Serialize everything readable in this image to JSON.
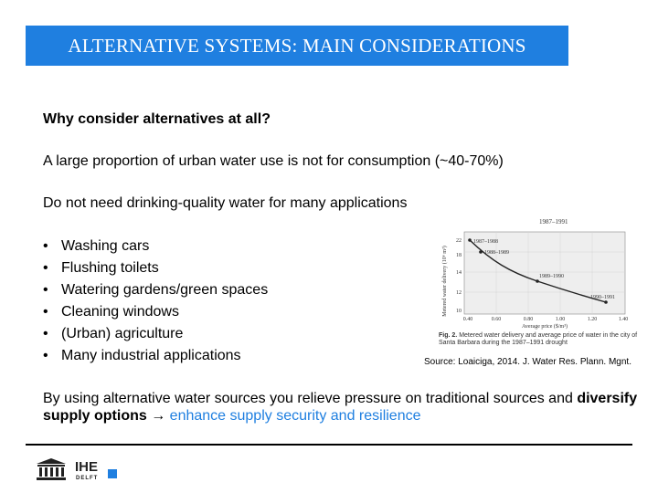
{
  "title": "ALTERNATIVE SYSTEMS: MAIN CONSIDERATIONS",
  "question": "Why consider alternatives at all?",
  "statement1": "A large proportion of urban water use is not for consumption (~40-70%)",
  "statement2": "Do not need drinking-quality water for many applications",
  "bullets": [
    "Washing cars",
    "Flushing toilets",
    "Watering gardens/green spaces",
    "Cleaning windows",
    "(Urban) agriculture",
    "Many industrial applications"
  ],
  "figure": {
    "top_label": "1987–1991",
    "ylabel": "Metered water delivery (10⁶ m³)",
    "xlabel": "Average price ($/m³)",
    "x_ticks": [
      "0.40",
      "0.60",
      "0.80",
      "1.00",
      "1.20",
      "1.40"
    ],
    "y_ticks": [
      "10",
      "12",
      "14",
      "18",
      "22"
    ],
    "point_labels": [
      "1987–1988",
      "1988–1989",
      "1989–1990",
      "1990–1991"
    ],
    "caption_fig": "Fig. 2.",
    "caption_text": "Metered water delivery and average price of water in the city of Santa Barbara during the 1987–1991 drought",
    "caption_bold_place": "Santa Barbara"
  },
  "source": "Source: Loaiciga, 2014. J. Water Res. Plann. Mgnt.",
  "closing": {
    "part1": "By using alternative water sources you relieve pressure on traditional sources and ",
    "bold": "diversify supply options",
    "arrow": " → ",
    "accent": "enhance supply security and resilience"
  },
  "logo": {
    "line1": "IHE",
    "line2": "DELFT"
  },
  "colors": {
    "accent": "#1f7fe0",
    "title_bg": "#1f7fe0"
  }
}
